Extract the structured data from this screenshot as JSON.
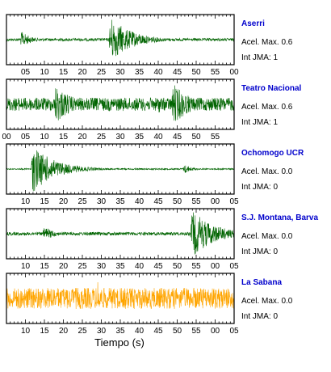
{
  "chart_data": {
    "type": "line",
    "xlabel": "Tiempo (s)",
    "panels": [
      {
        "station": "Aserri",
        "acel_label": "Acel. Max. 0.6",
        "jma_label": "Int JMA: 1",
        "color": "#006400",
        "station_color": "#0000cc",
        "tick_labels": [
          "05",
          "10",
          "15",
          "20",
          "25",
          "30",
          "35",
          "40",
          "45",
          "50",
          "55",
          "00"
        ],
        "tick_labels_top": [],
        "x_range_s": [
          0,
          60
        ],
        "bursts": [
          {
            "center_s": 4,
            "amplitude": 0.35,
            "decay": 0.4
          },
          {
            "center_s": 27.5,
            "amplitude": 0.95,
            "decay": 0.18
          }
        ],
        "noise": 0.06
      },
      {
        "station": "Teatro Nacional",
        "acel_label": "Acel. Max. 0.6",
        "jma_label": "Int JMA: 1",
        "color": "#006400",
        "station_color": "#0000cc",
        "tick_labels": [],
        "tick_labels_top": [
          "00",
          "05",
          "10",
          "15",
          "20",
          "25",
          "30",
          "35",
          "40",
          "45",
          "50",
          "55"
        ],
        "x_range_s": [
          0,
          60
        ],
        "bursts": [
          {
            "center_s": 13,
            "amplitude": 0.85,
            "decay": 0.22
          },
          {
            "center_s": 40,
            "amplitude": 0.4,
            "decay": 0.3
          },
          {
            "center_s": 44,
            "amplitude": 0.9,
            "decay": 0.22
          }
        ],
        "noise": 0.28
      },
      {
        "station": "Ochomogo UCR",
        "acel_label": "Acel. Max. 0.0",
        "jma_label": "Int JMA: 0",
        "color": "#006400",
        "station_color": "#0000cc",
        "tick_labels": [
          "10",
          "15",
          "20",
          "25",
          "30",
          "35",
          "40",
          "45",
          "50",
          "55",
          "00",
          "05"
        ],
        "tick_labels_top": [],
        "x_range_s": [
          0,
          60
        ],
        "bursts": [
          {
            "center_s": 7,
            "amplitude": 1.0,
            "decay": 0.17
          },
          {
            "center_s": 47,
            "amplitude": 0.2,
            "decay": 0.5
          }
        ],
        "noise": 0.03
      },
      {
        "station": "S.J. Montana, Barva",
        "acel_label": "Acel. Max. 0.0",
        "jma_label": "Int JMA: 0",
        "color": "#006400",
        "station_color": "#0000cc",
        "tick_labels": [
          "10",
          "15",
          "20",
          "25",
          "30",
          "35",
          "40",
          "45",
          "50",
          "55",
          "00",
          "05"
        ],
        "tick_labels_top": [],
        "x_range_s": [
          0,
          60
        ],
        "bursts": [
          {
            "center_s": 10,
            "amplitude": 0.3,
            "decay": 0.35
          },
          {
            "center_s": 49,
            "amplitude": 1.0,
            "decay": 0.17
          }
        ],
        "noise": 0.07
      },
      {
        "station": "La Sabana",
        "acel_label": "Acel. Max. 0.0",
        "jma_label": "Int JMA: 0",
        "color": "#ffa500",
        "station_color": "#0000cc",
        "tick_labels": [
          "10",
          "15",
          "20",
          "25",
          "30",
          "35",
          "40",
          "45",
          "50",
          "55",
          "00",
          "05"
        ],
        "tick_labels_top": [],
        "x_range_s": [
          0,
          60
        ],
        "bursts": [
          {
            "center_s": 12,
            "amplitude": 0.6,
            "decay": 0.5
          },
          {
            "center_s": 24,
            "amplitude": 0.85,
            "decay": 0.9
          }
        ],
        "noise": 0.45
      }
    ]
  }
}
